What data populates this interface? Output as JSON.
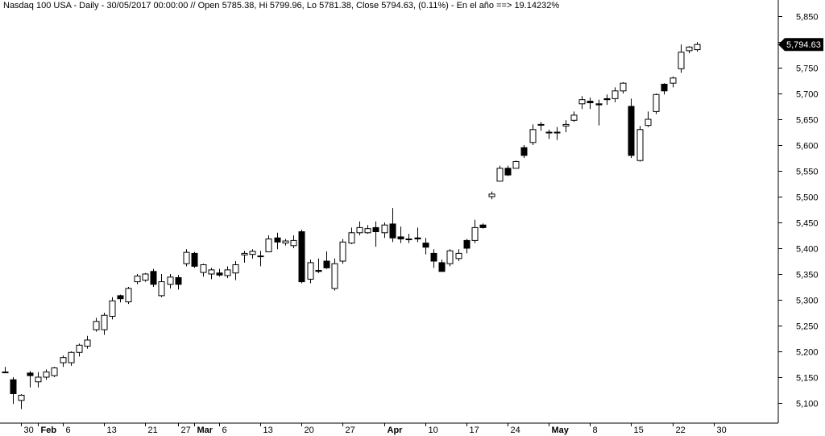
{
  "header": {
    "instrument": "Nasdaq 100 USA",
    "period": "Daily",
    "datetime": "30/05/2017 00:00:00",
    "open_label": "Open",
    "open": "5785.38",
    "high_label": "Hi",
    "high": "5799.96",
    "low_label": "Lo",
    "low": "5781.38",
    "close_label": "Close",
    "close": "5794.63",
    "change_pct": "(0.11%)",
    "ytd_label": "En el año ==>",
    "ytd_value": "19.14232%"
  },
  "colors": {
    "up": "#ffffff",
    "down": "#000000",
    "wick": "#000000",
    "axis": "#000000",
    "background": "#ffffff"
  },
  "chart_data": {
    "type": "candlestick",
    "ylim": [
      5070,
      5870
    ],
    "yticks": [
      "5,100",
      "5,150",
      "5,200",
      "5,250",
      "5,300",
      "5,350",
      "5,400",
      "5,450",
      "5,500",
      "5,550",
      "5,600",
      "5,650",
      "5,700",
      "5,750",
      "5,800",
      "5,850"
    ],
    "last_price_label": "5,794.63",
    "xtick_labels": [
      {
        "label": "30",
        "bar": 2,
        "bold": false
      },
      {
        "label": "Feb",
        "bar": 4,
        "bold": true
      },
      {
        "label": "6",
        "bar": 7,
        "bold": false
      },
      {
        "label": "13",
        "bar": 12,
        "bold": false
      },
      {
        "label": "21",
        "bar": 17,
        "bold": false
      },
      {
        "label": "27",
        "bar": 21,
        "bold": false
      },
      {
        "label": "Mar",
        "bar": 23,
        "bold": true
      },
      {
        "label": "6",
        "bar": 26,
        "bold": false
      },
      {
        "label": "13",
        "bar": 31,
        "bold": false
      },
      {
        "label": "20",
        "bar": 36,
        "bold": false
      },
      {
        "label": "27",
        "bar": 41,
        "bold": false
      },
      {
        "label": "Apr",
        "bar": 46,
        "bold": true
      },
      {
        "label": "10",
        "bar": 51,
        "bold": false
      },
      {
        "label": "17",
        "bar": 56,
        "bold": false
      },
      {
        "label": "24",
        "bar": 61,
        "bold": false
      },
      {
        "label": "May",
        "bar": 66,
        "bold": true
      },
      {
        "label": "8",
        "bar": 71,
        "bold": false
      },
      {
        "label": "15",
        "bar": 76,
        "bold": false
      },
      {
        "label": "22",
        "bar": 81,
        "bold": false
      },
      {
        "label": "30",
        "bar": 86,
        "bold": false
      }
    ],
    "candles": [
      {
        "o": 5160,
        "h": 5170,
        "l": 5160,
        "c": 5160
      },
      {
        "o": 5145,
        "h": 5150,
        "l": 5098,
        "c": 5118
      },
      {
        "o": 5105,
        "h": 5117,
        "l": 5088,
        "c": 5115
      },
      {
        "o": 5158,
        "h": 5162,
        "l": 5130,
        "c": 5153
      },
      {
        "o": 5141,
        "h": 5160,
        "l": 5130,
        "c": 5150
      },
      {
        "o": 5150,
        "h": 5165,
        "l": 5145,
        "c": 5160
      },
      {
        "o": 5153,
        "h": 5170,
        "l": 5150,
        "c": 5168
      },
      {
        "o": 5178,
        "h": 5192,
        "l": 5170,
        "c": 5188
      },
      {
        "o": 5178,
        "h": 5200,
        "l": 5172,
        "c": 5198
      },
      {
        "o": 5198,
        "h": 5215,
        "l": 5190,
        "c": 5212
      },
      {
        "o": 5210,
        "h": 5230,
        "l": 5205,
        "c": 5222
      },
      {
        "o": 5242,
        "h": 5265,
        "l": 5238,
        "c": 5258
      },
      {
        "o": 5242,
        "h": 5275,
        "l": 5232,
        "c": 5270
      },
      {
        "o": 5268,
        "h": 5305,
        "l": 5262,
        "c": 5298
      },
      {
        "o": 5308,
        "h": 5310,
        "l": 5295,
        "c": 5302
      },
      {
        "o": 5296,
        "h": 5325,
        "l": 5292,
        "c": 5322
      },
      {
        "o": 5335,
        "h": 5350,
        "l": 5330,
        "c": 5346
      },
      {
        "o": 5338,
        "h": 5352,
        "l": 5335,
        "c": 5350
      },
      {
        "o": 5355,
        "h": 5360,
        "l": 5325,
        "c": 5330
      },
      {
        "o": 5308,
        "h": 5350,
        "l": 5305,
        "c": 5335
      },
      {
        "o": 5330,
        "h": 5350,
        "l": 5322,
        "c": 5344
      },
      {
        "o": 5343,
        "h": 5348,
        "l": 5320,
        "c": 5330
      },
      {
        "o": 5370,
        "h": 5398,
        "l": 5365,
        "c": 5392
      },
      {
        "o": 5390,
        "h": 5393,
        "l": 5362,
        "c": 5365
      },
      {
        "o": 5353,
        "h": 5370,
        "l": 5345,
        "c": 5368
      },
      {
        "o": 5350,
        "h": 5362,
        "l": 5340,
        "c": 5358
      },
      {
        "o": 5352,
        "h": 5360,
        "l": 5345,
        "c": 5348
      },
      {
        "o": 5347,
        "h": 5365,
        "l": 5342,
        "c": 5358
      },
      {
        "o": 5352,
        "h": 5375,
        "l": 5338,
        "c": 5368
      },
      {
        "o": 5387,
        "h": 5395,
        "l": 5372,
        "c": 5390
      },
      {
        "o": 5388,
        "h": 5398,
        "l": 5380,
        "c": 5394
      },
      {
        "o": 5385,
        "h": 5395,
        "l": 5365,
        "c": 5385
      },
      {
        "o": 5393,
        "h": 5425,
        "l": 5393,
        "c": 5418
      },
      {
        "o": 5420,
        "h": 5430,
        "l": 5398,
        "c": 5412
      },
      {
        "o": 5410,
        "h": 5418,
        "l": 5405,
        "c": 5414
      },
      {
        "o": 5405,
        "h": 5425,
        "l": 5400,
        "c": 5415
      },
      {
        "o": 5432,
        "h": 5436,
        "l": 5332,
        "c": 5335
      },
      {
        "o": 5340,
        "h": 5378,
        "l": 5332,
        "c": 5372
      },
      {
        "o": 5357,
        "h": 5380,
        "l": 5352,
        "c": 5355
      },
      {
        "o": 5375,
        "h": 5394,
        "l": 5360,
        "c": 5362
      },
      {
        "o": 5322,
        "h": 5380,
        "l": 5318,
        "c": 5370
      },
      {
        "o": 5375,
        "h": 5418,
        "l": 5370,
        "c": 5412
      },
      {
        "o": 5410,
        "h": 5440,
        "l": 5408,
        "c": 5430
      },
      {
        "o": 5430,
        "h": 5452,
        "l": 5425,
        "c": 5440
      },
      {
        "o": 5430,
        "h": 5445,
        "l": 5428,
        "c": 5438
      },
      {
        "o": 5440,
        "h": 5452,
        "l": 5403,
        "c": 5432
      },
      {
        "o": 5430,
        "h": 5450,
        "l": 5420,
        "c": 5445
      },
      {
        "o": 5447,
        "h": 5478,
        "l": 5412,
        "c": 5420
      },
      {
        "o": 5422,
        "h": 5442,
        "l": 5410,
        "c": 5418
      },
      {
        "o": 5418,
        "h": 5428,
        "l": 5410,
        "c": 5418
      },
      {
        "o": 5420,
        "h": 5440,
        "l": 5412,
        "c": 5418
      },
      {
        "o": 5410,
        "h": 5420,
        "l": 5388,
        "c": 5402
      },
      {
        "o": 5390,
        "h": 5398,
        "l": 5362,
        "c": 5375
      },
      {
        "o": 5372,
        "h": 5378,
        "l": 5355,
        "c": 5355
      },
      {
        "o": 5370,
        "h": 5398,
        "l": 5365,
        "c": 5395
      },
      {
        "o": 5380,
        "h": 5398,
        "l": 5375,
        "c": 5390
      },
      {
        "o": 5415,
        "h": 5418,
        "l": 5390,
        "c": 5400
      },
      {
        "o": 5415,
        "h": 5455,
        "l": 5410,
        "c": 5440
      },
      {
        "o": 5445,
        "h": 5448,
        "l": 5438,
        "c": 5440
      },
      {
        "o": 5500,
        "h": 5510,
        "l": 5495,
        "c": 5505
      },
      {
        "o": 5530,
        "h": 5560,
        "l": 5530,
        "c": 5555
      },
      {
        "o": 5555,
        "h": 5560,
        "l": 5540,
        "c": 5542
      },
      {
        "o": 5555,
        "h": 5570,
        "l": 5555,
        "c": 5568
      },
      {
        "o": 5595,
        "h": 5600,
        "l": 5575,
        "c": 5580
      },
      {
        "o": 5605,
        "h": 5640,
        "l": 5600,
        "c": 5630
      },
      {
        "o": 5640,
        "h": 5645,
        "l": 5628,
        "c": 5640
      },
      {
        "o": 5625,
        "h": 5630,
        "l": 5612,
        "c": 5625
      },
      {
        "o": 5625,
        "h": 5635,
        "l": 5610,
        "c": 5625
      },
      {
        "o": 5637,
        "h": 5648,
        "l": 5625,
        "c": 5640
      },
      {
        "o": 5648,
        "h": 5665,
        "l": 5645,
        "c": 5658
      },
      {
        "o": 5680,
        "h": 5695,
        "l": 5670,
        "c": 5688
      },
      {
        "o": 5685,
        "h": 5692,
        "l": 5670,
        "c": 5682
      },
      {
        "o": 5680,
        "h": 5688,
        "l": 5638,
        "c": 5678
      },
      {
        "o": 5690,
        "h": 5698,
        "l": 5678,
        "c": 5688
      },
      {
        "o": 5690,
        "h": 5712,
        "l": 5683,
        "c": 5705
      },
      {
        "o": 5705,
        "h": 5722,
        "l": 5700,
        "c": 5720
      },
      {
        "o": 5675,
        "h": 5690,
        "l": 5575,
        "c": 5580
      },
      {
        "o": 5570,
        "h": 5637,
        "l": 5568,
        "c": 5630
      },
      {
        "o": 5638,
        "h": 5665,
        "l": 5635,
        "c": 5650
      },
      {
        "o": 5665,
        "h": 5700,
        "l": 5660,
        "c": 5698
      },
      {
        "o": 5718,
        "h": 5720,
        "l": 5698,
        "c": 5705
      },
      {
        "o": 5720,
        "h": 5733,
        "l": 5712,
        "c": 5730
      },
      {
        "o": 5748,
        "h": 5795,
        "l": 5740,
        "c": 5780
      },
      {
        "o": 5783,
        "h": 5792,
        "l": 5778,
        "c": 5790
      },
      {
        "o": 5785,
        "h": 5800,
        "l": 5781,
        "c": 5795
      }
    ]
  }
}
